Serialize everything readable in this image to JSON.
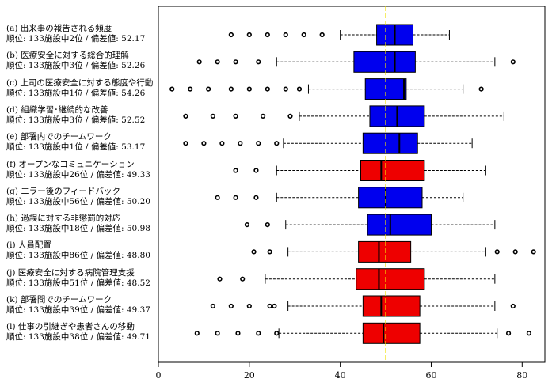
{
  "chart_data": {
    "type": "boxplot",
    "orientation": "horizontal",
    "xlim": [
      0,
      85
    ],
    "xticks": [
      0,
      20,
      40,
      60,
      80
    ],
    "reference_line": 50,
    "reference_color": "#f0e000",
    "colors": {
      "above": "#0000ee",
      "below": "#ee0000"
    },
    "items": [
      {
        "label": "(a) 出来事の報告される頻度",
        "sub": "順位: 133施設中2位 / 偏差値: 52.17",
        "color": "above",
        "whisker_low": 40,
        "q1": 48,
        "median": 52,
        "q3": 56,
        "whisker_high": 64,
        "outliers": [
          16,
          20,
          24,
          28,
          32,
          36
        ]
      },
      {
        "label": "(b) 医療安全に対する総合的理解",
        "sub": "順位: 133施設中3位 / 偏差値: 52.26",
        "color": "above",
        "whisker_low": 26,
        "q1": 43,
        "median": 52,
        "q3": 56.5,
        "whisker_high": 74,
        "outliers": [
          9,
          13,
          17,
          22,
          78
        ]
      },
      {
        "label": "(c) 上司の医療安全に対する態度や行動",
        "sub": "順位: 133施設中1位 / 偏差値: 54.26",
        "color": "above",
        "whisker_low": 33,
        "q1": 45.5,
        "median": 54,
        "q3": 54.5,
        "whisker_high": 67,
        "outliers": [
          3,
          7,
          11,
          16,
          20,
          24,
          28,
          31,
          71
        ]
      },
      {
        "label": "(d) 組織学習･継続的な改善",
        "sub": "順位: 133施設中3位 / 偏差値: 52.52",
        "color": "above",
        "whisker_low": 31,
        "q1": 46.5,
        "median": 52.5,
        "q3": 58.5,
        "whisker_high": 76,
        "outliers": [
          6,
          12,
          17,
          23,
          29
        ]
      },
      {
        "label": "(e) 部署内でのチームワーク",
        "sub": "順位: 133施設中1位 / 偏差値: 53.17",
        "color": "above",
        "whisker_low": 27.5,
        "q1": 45,
        "median": 53,
        "q3": 57,
        "whisker_high": 69,
        "outliers": [
          6,
          10,
          14,
          18,
          22,
          26
        ]
      },
      {
        "label": "(f) オープンなコミュニケーション",
        "sub": "順位: 133施設中26位 / 偏差値: 49.33",
        "color": "below",
        "whisker_low": 26,
        "q1": 44.5,
        "median": 49,
        "q3": 58.5,
        "whisker_high": 72,
        "outliers": [
          17,
          21.5
        ]
      },
      {
        "label": "(g) エラー後のフィードバック",
        "sub": "順位: 133施設中56位 / 偏差値: 50.20",
        "color": "above",
        "whisker_low": 26,
        "q1": 44,
        "median": 50,
        "q3": 58,
        "whisker_high": 67,
        "outliers": [
          13,
          17,
          21.5
        ]
      },
      {
        "label": "(h) 過誤に対する非懲罰的対応",
        "sub": "順位: 133施設中18位 / 偏差値: 50.98",
        "color": "above",
        "whisker_low": 28,
        "q1": 46,
        "median": 51,
        "q3": 60,
        "whisker_high": 74,
        "outliers": [
          19.5,
          24
        ]
      },
      {
        "label": "(i) 人員配置",
        "sub": "順位: 133施設中86位 / 偏差値: 48.80",
        "color": "below",
        "whisker_low": 28.5,
        "q1": 44,
        "median": 48.5,
        "q3": 55.5,
        "whisker_high": 72,
        "outliers": [
          21,
          24.5,
          74.5,
          78.5,
          82.5
        ]
      },
      {
        "label": "(j) 医療安全に対する病院管理支援",
        "sub": "順位: 133施設中51位 / 偏差値: 48.52",
        "color": "below",
        "whisker_low": 23.5,
        "q1": 43.5,
        "median": 48.5,
        "q3": 58.5,
        "whisker_high": 74,
        "outliers": [
          13.5,
          18.5
        ]
      },
      {
        "label": "(k) 部署間でのチームワーク",
        "sub": "順位: 133施設中39位 / 偏差値: 49.37",
        "color": "below",
        "whisker_low": 28.5,
        "q1": 45,
        "median": 49,
        "q3": 57.5,
        "whisker_high": 74,
        "outliers": [
          12,
          16,
          20,
          24.5,
          25.5,
          78
        ]
      },
      {
        "label": "(l) 仕事の引継ぎや患者さんの移動",
        "sub": "順位: 133施設中38位 / 偏差値: 49.71",
        "color": "below",
        "whisker_low": 26.5,
        "q1": 45,
        "median": 49.5,
        "q3": 57.5,
        "whisker_high": 74.5,
        "outliers": [
          8.5,
          13,
          17.5,
          22,
          26,
          77,
          81.5
        ]
      }
    ]
  }
}
